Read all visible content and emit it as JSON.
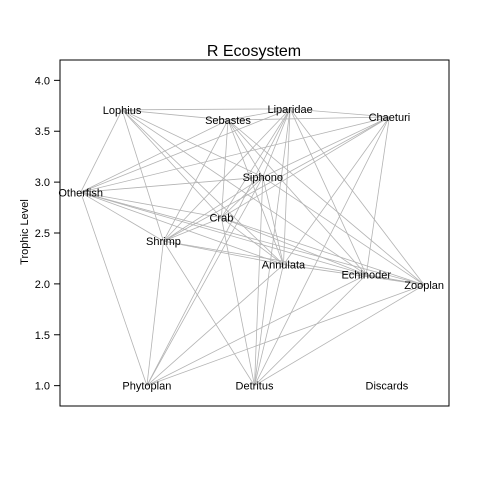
{
  "chart_data": {
    "type": "scatter",
    "title": "R Ecosystem",
    "xlabel": "",
    "ylabel": "Trophic Level",
    "ylim": [
      0.8,
      4.2
    ],
    "yticks": [
      "1.0",
      "1.5",
      "2.0",
      "2.5",
      "3.0",
      "3.5",
      "4.0"
    ],
    "grid": false,
    "nodes": [
      {
        "name": "Lophius",
        "x": 1.35,
        "y": 3.71
      },
      {
        "name": "Sebastes",
        "x": 2.63,
        "y": 3.61
      },
      {
        "name": "Liparidae",
        "x": 3.38,
        "y": 3.72
      },
      {
        "name": "Chaeturi",
        "x": 4.58,
        "y": 3.64
      },
      {
        "name": "Siphono",
        "x": 3.05,
        "y": 3.05
      },
      {
        "name": "Otherfish",
        "x": 0.85,
        "y": 2.9
      },
      {
        "name": "Crab",
        "x": 2.55,
        "y": 2.65
      },
      {
        "name": "Shrimp",
        "x": 1.85,
        "y": 2.42
      },
      {
        "name": "Annulata",
        "x": 3.3,
        "y": 2.19
      },
      {
        "name": "Echinoder",
        "x": 4.3,
        "y": 2.09
      },
      {
        "name": "Zooplan",
        "x": 5.0,
        "y": 1.99
      },
      {
        "name": "Phytoplan",
        "x": 1.65,
        "y": 1.0
      },
      {
        "name": "Detritus",
        "x": 2.95,
        "y": 1.0
      },
      {
        "name": "Discards",
        "x": 4.55,
        "y": 1.0
      }
    ],
    "edges": [
      [
        "Lophius",
        "Sebastes"
      ],
      [
        "Lophius",
        "Liparidae"
      ],
      [
        "Lophius",
        "Otherfish"
      ],
      [
        "Lophius",
        "Shrimp"
      ],
      [
        "Lophius",
        "Crab"
      ],
      [
        "Lophius",
        "Annulata"
      ],
      [
        "Lophius",
        "Siphono"
      ],
      [
        "Lophius",
        "Echinoder"
      ],
      [
        "Sebastes",
        "Liparidae"
      ],
      [
        "Sebastes",
        "Chaeturi"
      ],
      [
        "Sebastes",
        "Otherfish"
      ],
      [
        "Sebastes",
        "Shrimp"
      ],
      [
        "Sebastes",
        "Crab"
      ],
      [
        "Sebastes",
        "Annulata"
      ],
      [
        "Sebastes",
        "Echinoder"
      ],
      [
        "Sebastes",
        "Zooplan"
      ],
      [
        "Sebastes",
        "Siphono"
      ],
      [
        "Liparidae",
        "Chaeturi"
      ],
      [
        "Liparidae",
        "Otherfish"
      ],
      [
        "Liparidae",
        "Shrimp"
      ],
      [
        "Liparidae",
        "Crab"
      ],
      [
        "Liparidae",
        "Annulata"
      ],
      [
        "Liparidae",
        "Echinoder"
      ],
      [
        "Liparidae",
        "Zooplan"
      ],
      [
        "Liparidae",
        "Detritus"
      ],
      [
        "Liparidae",
        "Phytoplan"
      ],
      [
        "Liparidae",
        "Siphono"
      ],
      [
        "Chaeturi",
        "Otherfish"
      ],
      [
        "Chaeturi",
        "Shrimp"
      ],
      [
        "Chaeturi",
        "Crab"
      ],
      [
        "Chaeturi",
        "Annulata"
      ],
      [
        "Chaeturi",
        "Echinoder"
      ],
      [
        "Chaeturi",
        "Detritus"
      ],
      [
        "Chaeturi",
        "Siphono"
      ],
      [
        "Otherfish",
        "Shrimp"
      ],
      [
        "Otherfish",
        "Crab"
      ],
      [
        "Otherfish",
        "Siphono"
      ],
      [
        "Otherfish",
        "Annulata"
      ],
      [
        "Otherfish",
        "Zooplan"
      ],
      [
        "Otherfish",
        "Phytoplan"
      ],
      [
        "Otherfish",
        "Echinoder"
      ],
      [
        "Siphono",
        "Shrimp"
      ],
      [
        "Siphono",
        "Crab"
      ],
      [
        "Siphono",
        "Zooplan"
      ],
      [
        "Siphono",
        "Phytoplan"
      ],
      [
        "Siphono",
        "Detritus"
      ],
      [
        "Siphono",
        "Annulata"
      ],
      [
        "Crab",
        "Annulata"
      ],
      [
        "Crab",
        "Echinoder"
      ],
      [
        "Crab",
        "Detritus"
      ],
      [
        "Crab",
        "Zooplan"
      ],
      [
        "Crab",
        "Shrimp"
      ],
      [
        "Shrimp",
        "Zooplan"
      ],
      [
        "Shrimp",
        "Detritus"
      ],
      [
        "Shrimp",
        "Phytoplan"
      ],
      [
        "Shrimp",
        "Annulata"
      ],
      [
        "Annulata",
        "Detritus"
      ],
      [
        "Annulata",
        "Zooplan"
      ],
      [
        "Annulata",
        "Phytoplan"
      ],
      [
        "Echinoder",
        "Zooplan"
      ],
      [
        "Echinoder",
        "Detritus"
      ],
      [
        "Echinoder",
        "Phytoplan"
      ],
      [
        "Zooplan",
        "Phytoplan"
      ],
      [
        "Zooplan",
        "Detritus"
      ]
    ]
  }
}
